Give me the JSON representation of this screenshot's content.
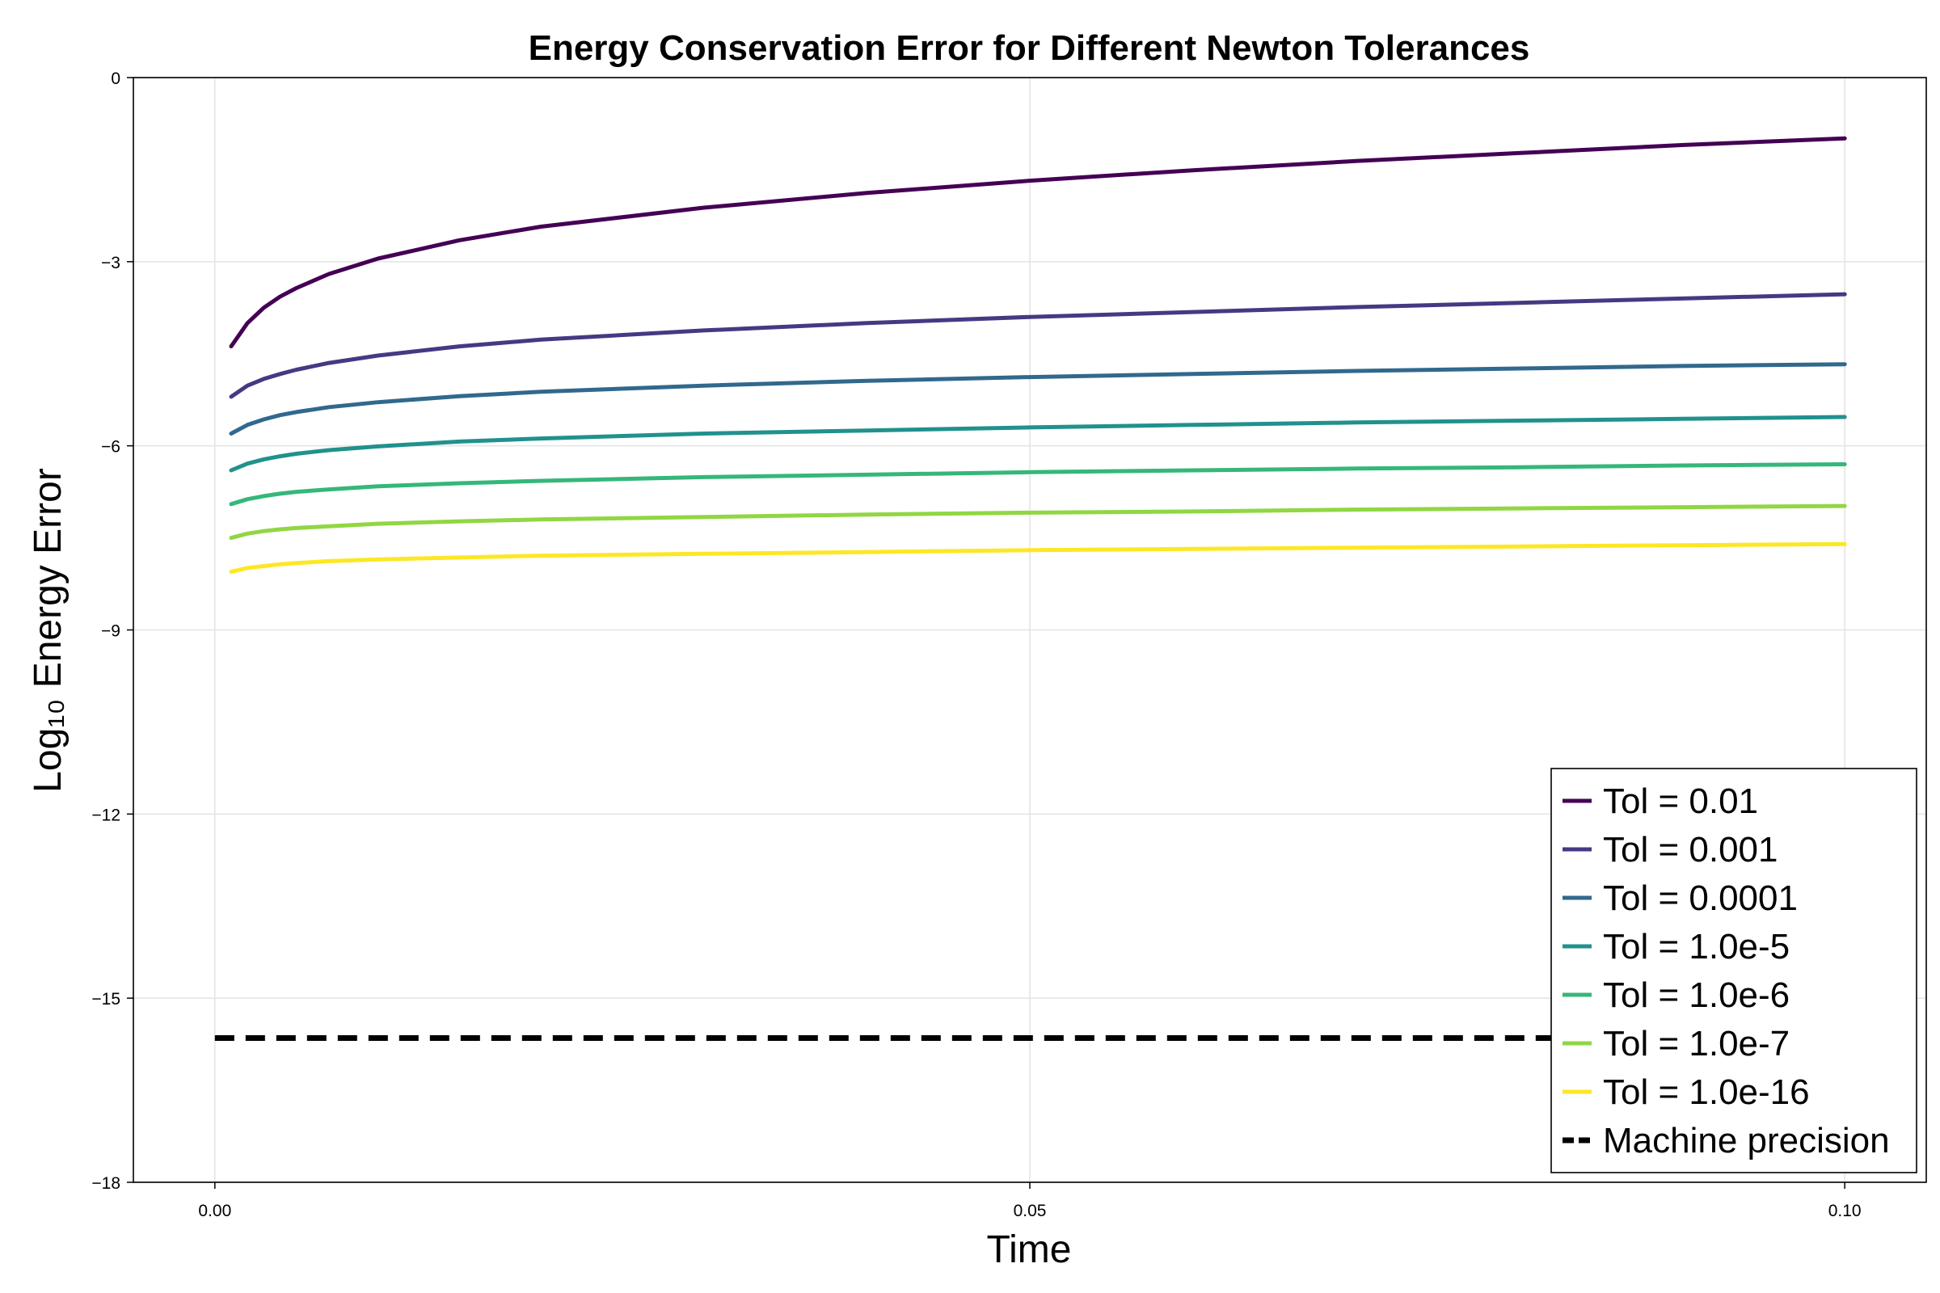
{
  "chart_data": {
    "type": "line",
    "title": "Energy Conservation Error for Different Newton Tolerances",
    "xlabel": "Time",
    "ylabel": "Log₁₀ Energy Error",
    "xlim": [
      -0.005,
      0.105
    ],
    "ylim": [
      -18,
      0
    ],
    "xticks": [
      0.0,
      0.05,
      0.1
    ],
    "xtick_labels": [
      "0.00",
      "0.05",
      "0.10"
    ],
    "yticks": [
      0,
      -3,
      -6,
      -9,
      -12,
      -15,
      -18
    ],
    "ytick_labels": [
      "0",
      "−3",
      "−6",
      "−9",
      "−12",
      "−15",
      "−18"
    ],
    "grid": true,
    "legend_position": "bottom-right",
    "x": [
      0.001,
      0.002,
      0.003,
      0.004,
      0.005,
      0.007,
      0.01,
      0.015,
      0.02,
      0.03,
      0.04,
      0.05,
      0.06,
      0.07,
      0.08,
      0.09,
      0.1
    ],
    "series": [
      {
        "name": "Tol = 0.01",
        "color": "#440154",
        "values": [
          -4.38,
          -4.0,
          -3.75,
          -3.57,
          -3.43,
          -3.2,
          -2.95,
          -2.65,
          -2.43,
          -2.12,
          -1.88,
          -1.68,
          -1.51,
          -1.36,
          -1.23,
          -1.1,
          -0.99
        ]
      },
      {
        "name": "Tol = 0.001",
        "color": "#443a83",
        "values": [
          -5.2,
          -5.02,
          -4.91,
          -4.83,
          -4.76,
          -4.65,
          -4.53,
          -4.38,
          -4.27,
          -4.12,
          -4.0,
          -3.9,
          -3.82,
          -3.74,
          -3.67,
          -3.6,
          -3.53
        ]
      },
      {
        "name": "Tol = 0.0001",
        "color": "#31688e",
        "values": [
          -5.8,
          -5.66,
          -5.57,
          -5.5,
          -5.45,
          -5.37,
          -5.29,
          -5.19,
          -5.12,
          -5.02,
          -4.94,
          -4.88,
          -4.83,
          -4.78,
          -4.74,
          -4.7,
          -4.67
        ]
      },
      {
        "name": "Tol = 1.0e-5",
        "color": "#21918c",
        "values": [
          -6.4,
          -6.29,
          -6.22,
          -6.17,
          -6.13,
          -6.07,
          -6.01,
          -5.93,
          -5.88,
          -5.8,
          -5.75,
          -5.7,
          -5.66,
          -5.62,
          -5.59,
          -5.56,
          -5.53
        ]
      },
      {
        "name": "Tol = 1.0e-6",
        "color": "#35b779",
        "values": [
          -6.95,
          -6.87,
          -6.82,
          -6.78,
          -6.75,
          -6.71,
          -6.66,
          -6.61,
          -6.57,
          -6.51,
          -6.47,
          -6.43,
          -6.4,
          -6.37,
          -6.35,
          -6.32,
          -6.3
        ]
      },
      {
        "name": "Tol = 1.0e-7",
        "color": "#90d743",
        "values": [
          -7.5,
          -7.43,
          -7.39,
          -7.36,
          -7.34,
          -7.31,
          -7.27,
          -7.23,
          -7.2,
          -7.16,
          -7.12,
          -7.09,
          -7.07,
          -7.04,
          -7.02,
          -7.0,
          -6.98
        ]
      },
      {
        "name": "Tol = 1.0e-16",
        "color": "#fde725",
        "values": [
          -8.05,
          -7.99,
          -7.96,
          -7.93,
          -7.91,
          -7.88,
          -7.85,
          -7.82,
          -7.79,
          -7.76,
          -7.73,
          -7.7,
          -7.68,
          -7.66,
          -7.64,
          -7.62,
          -7.6
        ]
      }
    ],
    "reference_line": {
      "name": "Machine precision",
      "color": "#000000",
      "style": "dashed",
      "y": -15.65,
      "x_range": [
        0.0,
        0.1
      ]
    }
  }
}
